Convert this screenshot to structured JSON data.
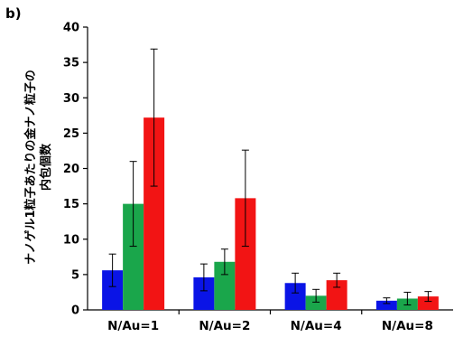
{
  "panel_label": "b)",
  "colors": {
    "series1": "#0a14e6",
    "series2": "#1aa64b",
    "series3": "#f21414",
    "axis": "#000000",
    "errorbar": "#000000"
  },
  "chart_data": {
    "type": "bar",
    "categories": [
      "N/Au=1",
      "N/Au=2",
      "N/Au=4",
      "N/Au=8"
    ],
    "series": [
      {
        "values": [
          5.6,
          4.6,
          3.8,
          1.3
        ],
        "errors": [
          2.3,
          1.9,
          1.4,
          0.4
        ],
        "color": "#0a14e6"
      },
      {
        "values": [
          15.0,
          6.8,
          2.0,
          1.6
        ],
        "errors": [
          6.0,
          1.8,
          0.9,
          0.9
        ],
        "color": "#1aa64b"
      },
      {
        "values": [
          27.2,
          15.8,
          4.2,
          1.9
        ],
        "errors": [
          9.7,
          6.8,
          1.0,
          0.7
        ],
        "color": "#f21414"
      }
    ],
    "ylabel_line1": "ナノゲル1粒子あたりの金ナノ粒子の",
    "ylabel_line2": "内包個数",
    "ylim": [
      0,
      40
    ],
    "yticks": [
      0,
      5,
      10,
      15,
      20,
      25,
      30,
      35,
      40
    ],
    "legend": "none",
    "grid": false
  }
}
